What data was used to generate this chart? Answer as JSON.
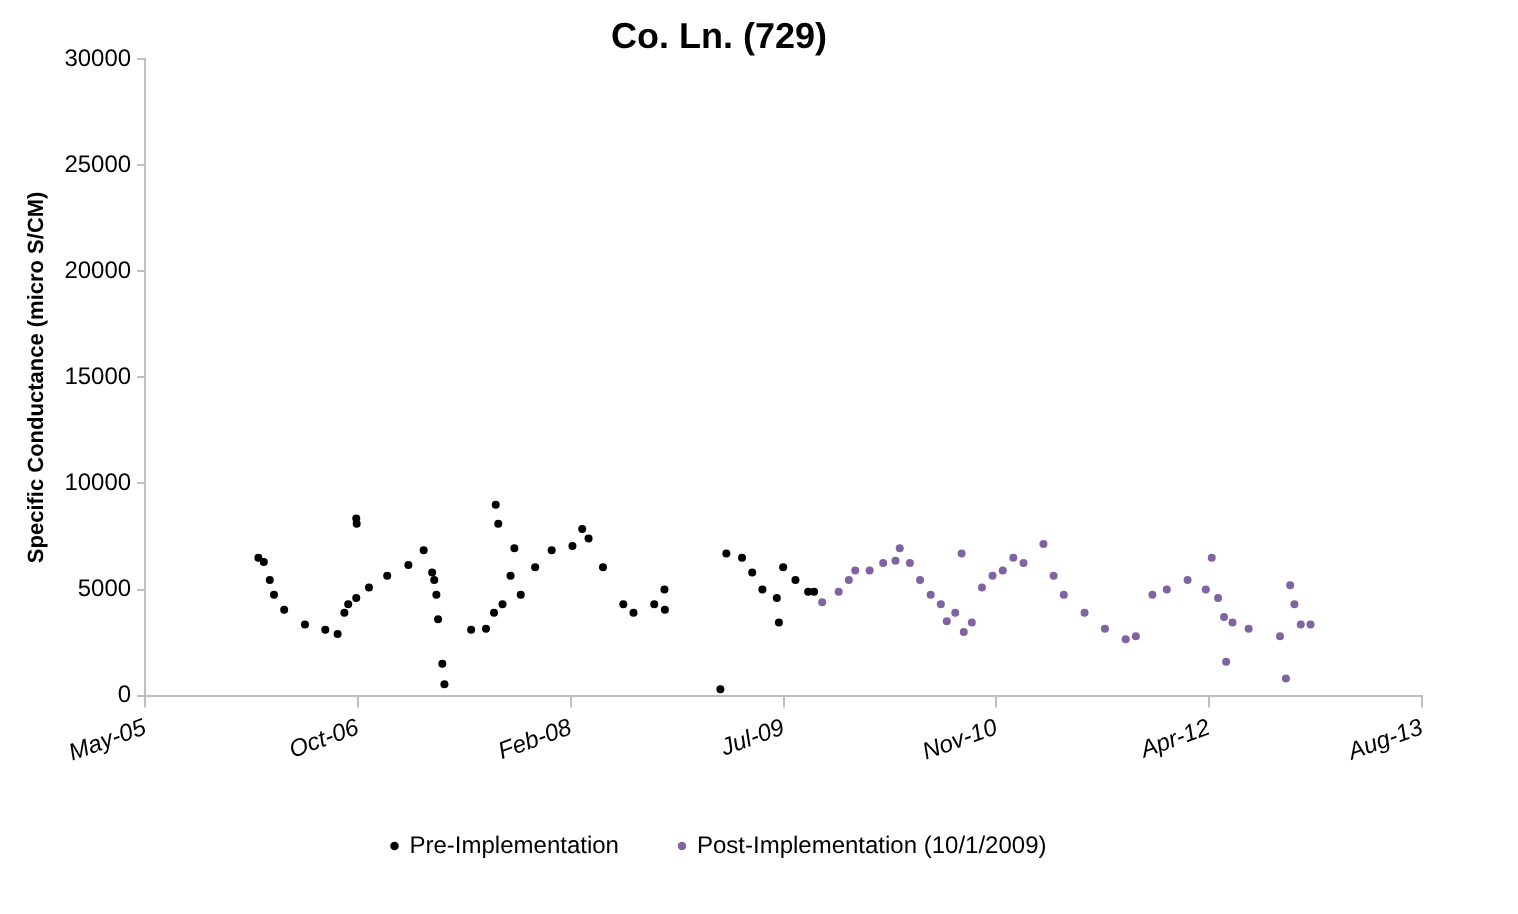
{
  "chart_data": {
    "type": "scatter",
    "title": "Co. Ln. (729)",
    "ylabel": "Specific Conductance (micro S/CM)",
    "legend": "bottom",
    "grid": false,
    "marker": "circle",
    "xlim": [
      "2005-05-25",
      "2013-08-23"
    ],
    "xticks": [
      {
        "value": "2005-05-25",
        "label": "May-05"
      },
      {
        "value": "2006-10-09",
        "label": "Oct-06"
      },
      {
        "value": "2008-02-23",
        "label": "Feb-08"
      },
      {
        "value": "2009-07-09",
        "label": "Jul-09"
      },
      {
        "value": "2010-11-23",
        "label": "Nov-10"
      },
      {
        "value": "2012-04-08",
        "label": "Apr-12"
      },
      {
        "value": "2013-08-23",
        "label": "Aug-13"
      }
    ],
    "ylim": [
      0,
      30000
    ],
    "yticks": [
      0,
      5000,
      10000,
      15000,
      20000,
      25000,
      30000
    ],
    "series": [
      {
        "name": "Pre-Implementation",
        "color": "#000000",
        "x": [
          "2006-02-16",
          "2006-03-01",
          "2006-03-15",
          "2006-03-25",
          "2006-04-18",
          "2006-06-06",
          "2006-07-24",
          "2006-08-22",
          "2006-09-07",
          "2006-09-16",
          "2006-10-05",
          "2006-10-05",
          "2006-10-06",
          "2006-11-04",
          "2006-12-17",
          "2007-02-05",
          "2007-03-13",
          "2007-04-02",
          "2007-04-07",
          "2007-04-12",
          "2007-04-16",
          "2007-04-26",
          "2007-05-01",
          "2007-07-03",
          "2007-08-07",
          "2007-08-26",
          "2007-08-30",
          "2007-09-05",
          "2007-09-15",
          "2007-10-04",
          "2007-10-13",
          "2007-10-28",
          "2007-12-01",
          "2008-01-09",
          "2008-02-27",
          "2008-03-21",
          "2008-04-05",
          "2008-05-09",
          "2008-06-26",
          "2008-07-20",
          "2008-09-07",
          "2008-10-01",
          "2008-10-02",
          "2009-02-10",
          "2009-02-24",
          "2009-04-02",
          "2009-04-26",
          "2009-05-20",
          "2009-06-23",
          "2009-06-28",
          "2009-07-08",
          "2009-08-06",
          "2009-09-05",
          "2009-09-19"
        ],
        "values": [
          6500,
          6300,
          5450,
          4750,
          4050,
          3350,
          3100,
          2900,
          3900,
          4300,
          4600,
          8350,
          8100,
          5100,
          5650,
          6150,
          6850,
          5800,
          5450,
          4750,
          3600,
          1500,
          530,
          3100,
          3150,
          3900,
          9000,
          8100,
          4300,
          5650,
          6950,
          4750,
          6050,
          6850,
          7050,
          7850,
          7400,
          6050,
          4300,
          3900,
          4300,
          5000,
          4050,
          300,
          6700,
          6500,
          5800,
          5000,
          4600,
          3450,
          6050,
          5450,
          4900,
          4900
        ]
      },
      {
        "name": "Post-Implementation (10/1/2009)",
        "color": "#8064a2",
        "x": [
          "2009-10-08",
          "2009-11-16",
          "2009-12-10",
          "2009-12-25",
          "2010-01-28",
          "2010-03-01",
          "2010-03-30",
          "2010-04-09",
          "2010-05-03",
          "2010-05-27",
          "2010-06-21",
          "2010-07-15",
          "2010-07-29",
          "2010-08-18",
          "2010-09-02",
          "2010-09-07",
          "2010-09-26",
          "2010-10-20",
          "2010-11-14",
          "2010-12-08",
          "2011-01-02",
          "2011-01-26",
          "2011-03-14",
          "2011-04-07",
          "2011-05-01",
          "2011-06-19",
          "2011-08-06",
          "2011-09-24",
          "2011-10-18",
          "2011-11-26",
          "2011-12-30",
          "2012-02-17",
          "2012-03-31",
          "2012-04-14",
          "2012-04-29",
          "2012-05-13",
          "2012-05-18",
          "2012-06-02",
          "2012-07-10",
          "2012-09-22",
          "2012-10-06",
          "2012-10-16",
          "2012-10-26",
          "2012-11-10",
          "2012-12-03"
        ],
        "values": [
          4400,
          4900,
          5450,
          5900,
          5900,
          6250,
          6350,
          6950,
          6250,
          5450,
          4750,
          4300,
          3500,
          3900,
          6700,
          3000,
          3450,
          5100,
          5650,
          5900,
          6500,
          6250,
          7150,
          5650,
          4750,
          3900,
          3150,
          2650,
          2800,
          4750,
          5000,
          5450,
          5000,
          6500,
          4600,
          3700,
          1600,
          3450,
          3150,
          2800,
          800,
          5200,
          4300,
          3350,
          3350
        ]
      }
    ]
  }
}
